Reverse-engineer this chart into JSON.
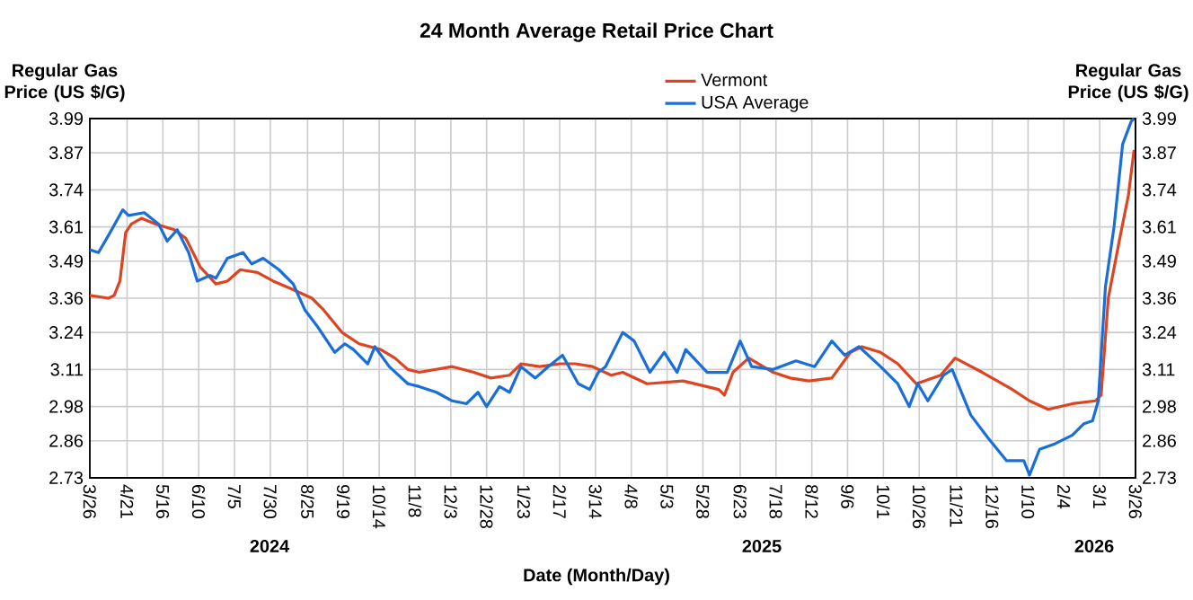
{
  "chart_data": {
    "type": "line",
    "title": "24 Month Average Retail Price Chart",
    "xlabel": "Date (Month/Day)",
    "ylabel": "Regular Gas Price (US $/G)",
    "y2label": "Regular Gas Price (US $/G)",
    "xlim": [
      "2024-03-26",
      "2026-03-26"
    ],
    "xticks": [
      {
        "value": "2024-03-26",
        "label": "3/26"
      },
      {
        "value": "2024-04-21",
        "label": "4/21"
      },
      {
        "value": "2024-05-16",
        "label": "5/16"
      },
      {
        "value": "2024-06-10",
        "label": "6/10"
      },
      {
        "value": "2024-07-05",
        "label": "7/5"
      },
      {
        "value": "2024-07-30",
        "label": "7/30"
      },
      {
        "value": "2024-08-25",
        "label": "8/25"
      },
      {
        "value": "2024-09-19",
        "label": "9/19"
      },
      {
        "value": "2024-10-14",
        "label": "10/14"
      },
      {
        "value": "2024-11-08",
        "label": "11/8"
      },
      {
        "value": "2024-12-03",
        "label": "12/3"
      },
      {
        "value": "2024-12-28",
        "label": "12/28"
      },
      {
        "value": "2025-01-23",
        "label": "1/23"
      },
      {
        "value": "2025-02-17",
        "label": "2/17"
      },
      {
        "value": "2025-03-14",
        "label": "3/14"
      },
      {
        "value": "2025-04-08",
        "label": "4/8"
      },
      {
        "value": "2025-05-03",
        "label": "5/3"
      },
      {
        "value": "2025-05-28",
        "label": "5/28"
      },
      {
        "value": "2025-06-23",
        "label": "6/23"
      },
      {
        "value": "2025-07-18",
        "label": "7/18"
      },
      {
        "value": "2025-08-12",
        "label": "8/12"
      },
      {
        "value": "2025-09-06",
        "label": "9/6"
      },
      {
        "value": "2025-10-01",
        "label": "10/1"
      },
      {
        "value": "2025-10-26",
        "label": "10/26"
      },
      {
        "value": "2025-11-21",
        "label": "11/21"
      },
      {
        "value": "2025-12-16",
        "label": "12/16"
      },
      {
        "value": "2026-01-10",
        "label": "1/10"
      },
      {
        "value": "2026-02-04",
        "label": "2/4"
      },
      {
        "value": "2026-03-01",
        "label": "3/1"
      },
      {
        "value": "2026-03-26",
        "label": "3/26"
      }
    ],
    "ylim": [
      2.73,
      3.99
    ],
    "yticks": [
      2.73,
      2.86,
      2.98,
      3.11,
      3.24,
      3.36,
      3.49,
      3.61,
      3.74,
      3.87,
      3.99
    ],
    "y2lim": [
      2.73,
      3.99
    ],
    "y2ticks": [
      2.73,
      2.86,
      2.98,
      3.11,
      3.24,
      3.36,
      3.49,
      3.61,
      3.74,
      3.87,
      3.99
    ],
    "grid": true,
    "legend": "top",
    "annotations": [
      "2024",
      "2025",
      "2026"
    ],
    "series": [
      {
        "name": "Vermont",
        "color": "#dd4422",
        "x": [
          "2024-03-26",
          "2024-04-08",
          "2024-04-12",
          "2024-04-16",
          "2024-04-20",
          "2024-04-24",
          "2024-05-01",
          "2024-05-11",
          "2024-05-24",
          "2024-06-01",
          "2024-06-11",
          "2024-06-22",
          "2024-06-30",
          "2024-07-09",
          "2024-07-21",
          "2024-08-01",
          "2024-08-15",
          "2024-08-28",
          "2024-09-05",
          "2024-09-18",
          "2024-09-30",
          "2024-10-15",
          "2024-10-25",
          "2024-11-03",
          "2024-11-11",
          "2024-12-04",
          "2024-12-19",
          "2024-12-31",
          "2025-01-13",
          "2025-01-21",
          "2025-02-03",
          "2025-02-17",
          "2025-02-28",
          "2025-03-12",
          "2025-03-25",
          "2025-04-02",
          "2025-04-19",
          "2025-05-14",
          "2025-06-08",
          "2025-06-12",
          "2025-06-18",
          "2025-06-29",
          "2025-07-16",
          "2025-07-28",
          "2025-08-10",
          "2025-08-26",
          "2025-09-08",
          "2025-09-16",
          "2025-09-29",
          "2025-10-11",
          "2025-10-24",
          "2025-11-10",
          "2025-11-20",
          "2025-12-09",
          "2025-12-30",
          "2026-01-11",
          "2026-01-24",
          "2026-02-10",
          "2026-02-26",
          "2026-03-02",
          "2026-03-07",
          "2026-03-15",
          "2026-03-21",
          "2026-03-25"
        ],
        "values": [
          3.37,
          3.36,
          3.37,
          3.42,
          3.59,
          3.62,
          3.64,
          3.62,
          3.6,
          3.57,
          3.47,
          3.41,
          3.42,
          3.46,
          3.45,
          3.42,
          3.39,
          3.36,
          3.32,
          3.24,
          3.2,
          3.18,
          3.15,
          3.11,
          3.1,
          3.12,
          3.1,
          3.08,
          3.09,
          3.13,
          3.12,
          3.13,
          3.13,
          3.12,
          3.09,
          3.1,
          3.06,
          3.07,
          3.04,
          3.02,
          3.1,
          3.15,
          3.1,
          3.08,
          3.07,
          3.08,
          3.17,
          3.19,
          3.17,
          3.13,
          3.06,
          3.09,
          3.15,
          3.1,
          3.04,
          3.0,
          2.97,
          2.99,
          3.0,
          3.02,
          3.36,
          3.57,
          3.72,
          3.88
        ]
      },
      {
        "name": "USA Average",
        "color": "#1a6ed8",
        "x": [
          "2024-03-26",
          "2024-04-01",
          "2024-04-08",
          "2024-04-18",
          "2024-04-22",
          "2024-05-03",
          "2024-05-13",
          "2024-05-19",
          "2024-05-26",
          "2024-06-03",
          "2024-06-09",
          "2024-06-18",
          "2024-06-22",
          "2024-06-30",
          "2024-07-11",
          "2024-07-17",
          "2024-07-25",
          "2024-08-05",
          "2024-08-15",
          "2024-08-23",
          "2024-09-01",
          "2024-09-13",
          "2024-09-20",
          "2024-09-26",
          "2024-10-06",
          "2024-10-11",
          "2024-10-21",
          "2024-11-03",
          "2024-11-11",
          "2024-11-23",
          "2024-12-04",
          "2024-12-14",
          "2024-12-22",
          "2024-12-28",
          "2025-01-06",
          "2025-01-13",
          "2025-01-21",
          "2025-01-31",
          "2025-02-09",
          "2025-02-19",
          "2025-03-02",
          "2025-03-10",
          "2025-03-16",
          "2025-03-21",
          "2025-04-02",
          "2025-04-10",
          "2025-04-21",
          "2025-05-01",
          "2025-05-10",
          "2025-05-16",
          "2025-05-31",
          "2025-06-14",
          "2025-06-23",
          "2025-07-01",
          "2025-07-16",
          "2025-08-01",
          "2025-08-14",
          "2025-08-26",
          "2025-09-04",
          "2025-09-14",
          "2025-09-29",
          "2025-10-11",
          "2025-10-19",
          "2025-10-25",
          "2025-11-01",
          "2025-11-12",
          "2025-11-18",
          "2025-12-01",
          "2025-12-13",
          "2025-12-26",
          "2026-01-07",
          "2026-01-11",
          "2026-01-18",
          "2026-01-29",
          "2026-02-10",
          "2026-02-18",
          "2026-02-24",
          "2026-02-28",
          "2026-03-05",
          "2026-03-11",
          "2026-03-17",
          "2026-03-23",
          "2026-03-25"
        ],
        "values": [
          3.53,
          3.52,
          3.58,
          3.67,
          3.65,
          3.66,
          3.62,
          3.56,
          3.6,
          3.52,
          3.42,
          3.44,
          3.43,
          3.5,
          3.52,
          3.48,
          3.5,
          3.46,
          3.41,
          3.32,
          3.26,
          3.17,
          3.2,
          3.18,
          3.13,
          3.19,
          3.12,
          3.06,
          3.05,
          3.03,
          3.0,
          2.99,
          3.03,
          2.98,
          3.05,
          3.03,
          3.12,
          3.08,
          3.12,
          3.16,
          3.06,
          3.04,
          3.1,
          3.12,
          3.24,
          3.21,
          3.1,
          3.17,
          3.1,
          3.18,
          3.1,
          3.1,
          3.21,
          3.12,
          3.11,
          3.14,
          3.12,
          3.21,
          3.16,
          3.19,
          3.12,
          3.06,
          2.98,
          3.06,
          3.0,
          3.09,
          3.11,
          2.95,
          2.87,
          2.79,
          2.79,
          2.74,
          2.83,
          2.85,
          2.88,
          2.92,
          2.93,
          3.0,
          3.4,
          3.61,
          3.9,
          3.98,
          3.99
        ]
      }
    ]
  }
}
